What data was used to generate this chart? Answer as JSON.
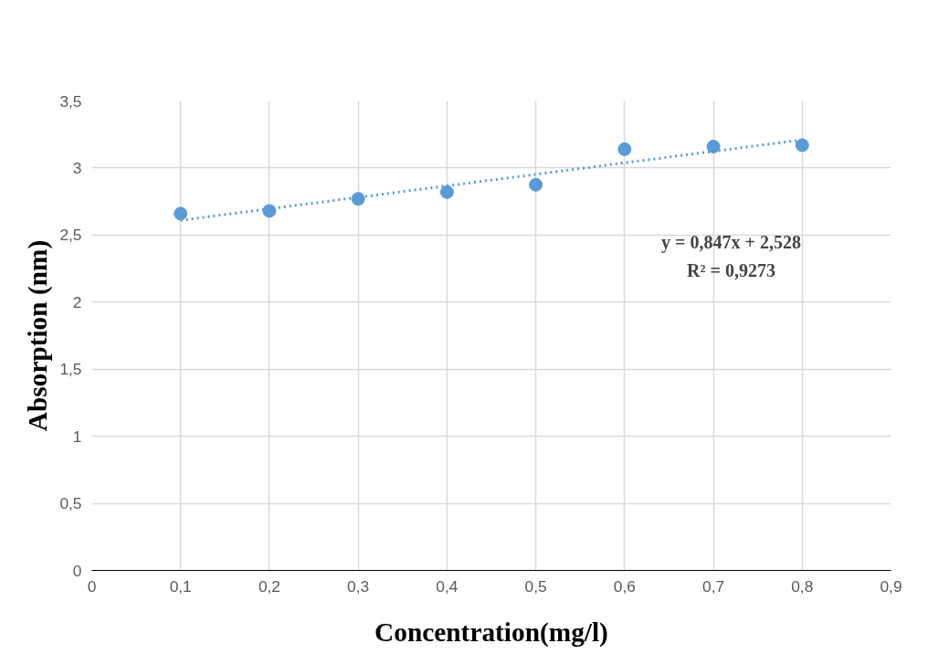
{
  "chart_data": {
    "type": "scatter",
    "xlabel": "Concentration(mg/l)",
    "ylabel": "Absorption (nm)",
    "xlim": [
      0,
      0.9
    ],
    "ylim": [
      0,
      3.5
    ],
    "xticks": [
      0,
      {
        "value": 0.1,
        "label": "0,1"
      },
      {
        "value": 0.2,
        "label": "0,2"
      },
      {
        "value": 0.3,
        "label": "0,3"
      },
      {
        "value": 0.4,
        "label": "0,4"
      },
      {
        "value": 0.5,
        "label": "0,5"
      },
      {
        "value": 0.6,
        "label": "0,6"
      },
      {
        "value": 0.7,
        "label": "0,7"
      },
      {
        "value": 0.8,
        "label": "0,8"
      },
      {
        "value": 0.9,
        "label": "0,9"
      }
    ],
    "yticks": [
      0,
      {
        "value": 0.5,
        "label": "0,5"
      },
      1,
      {
        "value": 1.5,
        "label": "1,5"
      },
      2,
      {
        "value": 2.5,
        "label": "2,5"
      },
      3,
      {
        "value": 3.5,
        "label": "3,5"
      }
    ],
    "grid": true,
    "marker": "circle",
    "series": [
      {
        "color": "#5b9bd5",
        "x": [
          0.1,
          0.2,
          0.3,
          0.4,
          0.5,
          0.6,
          0.7,
          0.8
        ],
        "values": [
          2.66,
          2.68,
          2.77,
          2.82,
          2.875,
          3.14,
          3.16,
          3.17
        ]
      },
      {
        "type": "line",
        "color": "#5b9bd5",
        "line_style": "dotted",
        "marker": "none",
        "x": [
          0.1,
          0.8
        ],
        "values": [
          2.61,
          3.21
        ]
      }
    ],
    "annotations": [
      "y = 0,847x + 2,528",
      "R² = 0,9273"
    ]
  }
}
